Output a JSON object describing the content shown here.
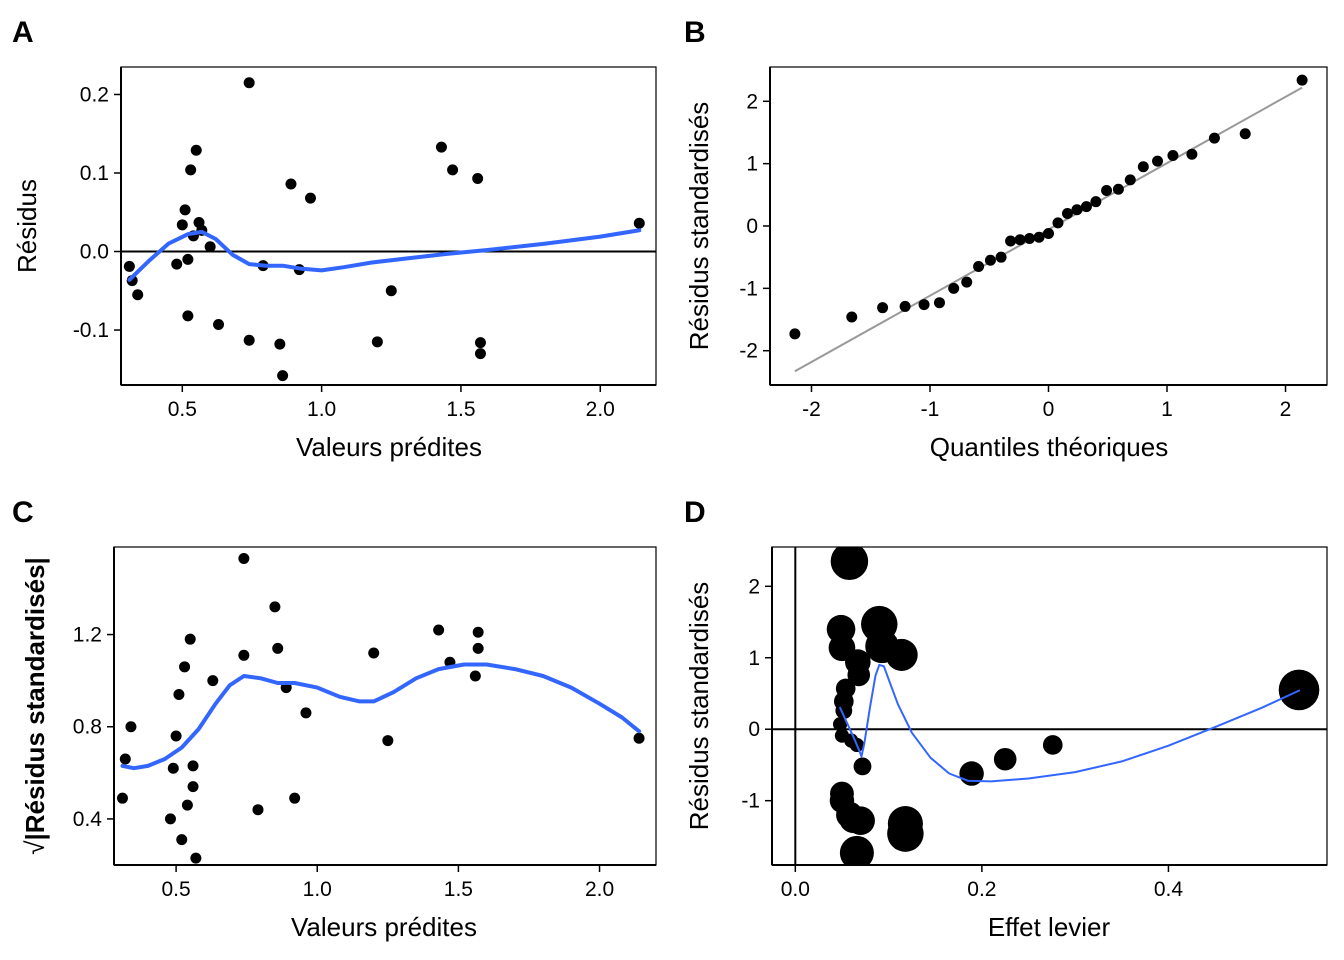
{
  "colors": {
    "smooth": "#3366FF",
    "qqline": "#999999",
    "point": "#000000",
    "refline": "#000000"
  },
  "chart_data": [
    {
      "panel": "A",
      "type": "scatter",
      "xlabel": "Valeurs prédites",
      "ylabel": "Résidus",
      "xlim": [
        0.28,
        2.2
      ],
      "ylim": [
        -0.17,
        0.235
      ],
      "xticks": [
        0.5,
        1.0,
        1.5,
        2.0
      ],
      "xtick_labels": [
        "0.5",
        "1.0",
        "1.5",
        "2.0"
      ],
      "yticks": [
        -0.1,
        0.0,
        0.1,
        0.2
      ],
      "ytick_labels": [
        "-0.1",
        "0.0",
        "0.1",
        "0.2"
      ],
      "hline": 0,
      "points": [
        [
          0.31,
          -0.019
        ],
        [
          0.32,
          -0.037
        ],
        [
          0.34,
          -0.055
        ],
        [
          0.48,
          -0.016
        ],
        [
          0.5,
          0.034
        ],
        [
          0.51,
          0.053
        ],
        [
          0.52,
          -0.01
        ],
        [
          0.52,
          -0.082
        ],
        [
          0.53,
          0.104
        ],
        [
          0.54,
          0.02
        ],
        [
          0.55,
          0.129
        ],
        [
          0.56,
          0.037
        ],
        [
          0.57,
          0.027
        ],
        [
          0.6,
          0.006
        ],
        [
          0.63,
          -0.093
        ],
        [
          0.74,
          0.215
        ],
        [
          0.74,
          -0.113
        ],
        [
          0.79,
          -0.018
        ],
        [
          0.85,
          -0.118
        ],
        [
          0.86,
          -0.158
        ],
        [
          0.89,
          0.086
        ],
        [
          0.92,
          -0.023
        ],
        [
          0.96,
          0.068
        ],
        [
          1.2,
          -0.115
        ],
        [
          1.25,
          -0.05
        ],
        [
          1.43,
          0.133
        ],
        [
          1.47,
          0.104
        ],
        [
          1.56,
          0.093
        ],
        [
          1.57,
          -0.116
        ],
        [
          1.57,
          -0.13
        ],
        [
          2.14,
          0.036
        ]
      ],
      "smooth": [
        [
          0.31,
          -0.036
        ],
        [
          0.38,
          -0.012
        ],
        [
          0.45,
          0.01
        ],
        [
          0.52,
          0.022
        ],
        [
          0.57,
          0.025
        ],
        [
          0.62,
          0.016
        ],
        [
          0.68,
          -0.004
        ],
        [
          0.74,
          -0.016
        ],
        [
          0.8,
          -0.018
        ],
        [
          0.86,
          -0.018
        ],
        [
          0.93,
          -0.022
        ],
        [
          1.0,
          -0.024
        ],
        [
          1.08,
          -0.02
        ],
        [
          1.18,
          -0.014
        ],
        [
          1.3,
          -0.009
        ],
        [
          1.45,
          -0.003
        ],
        [
          1.6,
          0.002
        ],
        [
          1.8,
          0.01
        ],
        [
          2.0,
          0.019
        ],
        [
          2.14,
          0.027
        ]
      ]
    },
    {
      "panel": "B",
      "type": "scatter",
      "xlabel": "Quantiles théoriques",
      "ylabel": "Résidus standardisés",
      "xlim": [
        -2.35,
        2.35
      ],
      "ylim": [
        -2.55,
        2.55
      ],
      "xticks": [
        -2,
        -1,
        0,
        1,
        2
      ],
      "xtick_labels": [
        "-2",
        "-1",
        "0",
        "1",
        "2"
      ],
      "yticks": [
        -2,
        -1,
        0,
        1,
        2
      ],
      "ytick_labels": [
        "-2",
        "-1",
        "0",
        "1",
        "2"
      ],
      "qqline": [
        [
          -2.14,
          -2.33
        ],
        [
          2.14,
          2.22
        ]
      ],
      "points": [
        [
          -2.14,
          -1.73
        ],
        [
          -1.66,
          -1.46
        ],
        [
          -1.4,
          -1.31
        ],
        [
          -1.21,
          -1.29
        ],
        [
          -1.05,
          -1.26
        ],
        [
          -0.92,
          -1.23
        ],
        [
          -0.8,
          -1.0
        ],
        [
          -0.69,
          -0.9
        ],
        [
          -0.59,
          -0.65
        ],
        [
          -0.49,
          -0.55
        ],
        [
          -0.4,
          -0.5
        ],
        [
          -0.32,
          -0.24
        ],
        [
          -0.24,
          -0.22
        ],
        [
          -0.16,
          -0.2
        ],
        [
          -0.08,
          -0.18
        ],
        [
          0.0,
          -0.12
        ],
        [
          0.08,
          0.05
        ],
        [
          0.16,
          0.2
        ],
        [
          0.24,
          0.26
        ],
        [
          0.32,
          0.31
        ],
        [
          0.4,
          0.39
        ],
        [
          0.49,
          0.57
        ],
        [
          0.59,
          0.59
        ],
        [
          0.69,
          0.74
        ],
        [
          0.8,
          0.95
        ],
        [
          0.92,
          1.04
        ],
        [
          1.05,
          1.13
        ],
        [
          1.21,
          1.15
        ],
        [
          1.4,
          1.41
        ],
        [
          1.66,
          1.48
        ],
        [
          2.14,
          2.34
        ]
      ]
    },
    {
      "panel": "C",
      "type": "scatter",
      "xlabel": "Valeurs prédites",
      "ylabel": "|Résidus standardisés|",
      "ylabel_prefix": "√",
      "xlim": [
        0.28,
        2.2
      ],
      "ylim": [
        0.2,
        1.58
      ],
      "xticks": [
        0.5,
        1.0,
        1.5,
        2.0
      ],
      "xtick_labels": [
        "0.5",
        "1.0",
        "1.5",
        "2.0"
      ],
      "yticks": [
        0.4,
        0.8,
        1.2
      ],
      "ytick_labels": [
        "0.4",
        "0.8",
        "1.2"
      ],
      "points": [
        [
          0.31,
          0.49
        ],
        [
          0.32,
          0.66
        ],
        [
          0.34,
          0.8
        ],
        [
          0.48,
          0.4
        ],
        [
          0.49,
          0.62
        ],
        [
          0.5,
          0.76
        ],
        [
          0.51,
          0.94
        ],
        [
          0.52,
          0.31
        ],
        [
          0.53,
          1.06
        ],
        [
          0.54,
          0.46
        ],
        [
          0.55,
          1.18
        ],
        [
          0.56,
          0.63
        ],
        [
          0.56,
          0.54
        ],
        [
          0.57,
          0.23
        ],
        [
          0.63,
          1.0
        ],
        [
          0.74,
          1.53
        ],
        [
          0.74,
          1.11
        ],
        [
          0.79,
          0.44
        ],
        [
          0.85,
          1.32
        ],
        [
          0.86,
          1.14
        ],
        [
          0.89,
          0.97
        ],
        [
          0.92,
          0.49
        ],
        [
          0.96,
          0.86
        ],
        [
          1.2,
          1.12
        ],
        [
          1.25,
          0.74
        ],
        [
          1.43,
          1.22
        ],
        [
          1.47,
          1.08
        ],
        [
          1.56,
          1.02
        ],
        [
          1.57,
          1.14
        ],
        [
          1.57,
          1.21
        ],
        [
          2.14,
          0.75
        ]
      ],
      "smooth": [
        [
          0.31,
          0.63
        ],
        [
          0.35,
          0.62
        ],
        [
          0.4,
          0.63
        ],
        [
          0.46,
          0.66
        ],
        [
          0.52,
          0.71
        ],
        [
          0.58,
          0.79
        ],
        [
          0.64,
          0.9
        ],
        [
          0.69,
          0.98
        ],
        [
          0.74,
          1.02
        ],
        [
          0.8,
          1.01
        ],
        [
          0.86,
          0.99
        ],
        [
          0.92,
          0.99
        ],
        [
          1.0,
          0.97
        ],
        [
          1.08,
          0.93
        ],
        [
          1.15,
          0.91
        ],
        [
          1.2,
          0.91
        ],
        [
          1.27,
          0.95
        ],
        [
          1.35,
          1.01
        ],
        [
          1.43,
          1.05
        ],
        [
          1.52,
          1.07
        ],
        [
          1.6,
          1.07
        ],
        [
          1.7,
          1.05
        ],
        [
          1.8,
          1.02
        ],
        [
          1.9,
          0.97
        ],
        [
          2.0,
          0.9
        ],
        [
          2.08,
          0.84
        ],
        [
          2.14,
          0.78
        ]
      ]
    },
    {
      "panel": "D",
      "type": "scatter",
      "xlabel": "Effet levier",
      "ylabel": "Résidus standardisés",
      "xlim": [
        -0.025,
        0.57
      ],
      "ylim": [
        -1.9,
        2.55
      ],
      "xticks": [
        0.0,
        0.2,
        0.4
      ],
      "xtick_labels": [
        "0.0",
        "0.2",
        "0.4"
      ],
      "yticks": [
        -1,
        0,
        1,
        2
      ],
      "ytick_labels": [
        "-1",
        "0",
        "1",
        "2"
      ],
      "hline": 0,
      "vline": 0,
      "points": [
        {
          "x": 0.058,
          "y": 2.35,
          "cook": 0.45
        },
        {
          "x": 0.09,
          "y": 1.47,
          "cook": 0.42
        },
        {
          "x": 0.049,
          "y": 1.4,
          "cook": 0.22
        },
        {
          "x": 0.093,
          "y": 1.16,
          "cook": 0.34
        },
        {
          "x": 0.05,
          "y": 1.14,
          "cook": 0.18
        },
        {
          "x": 0.114,
          "y": 1.04,
          "cook": 0.3
        },
        {
          "x": 0.067,
          "y": 0.94,
          "cook": 0.16
        },
        {
          "x": 0.068,
          "y": 0.76,
          "cook": 0.11
        },
        {
          "x": 0.054,
          "y": 0.57,
          "cook": 0.07
        },
        {
          "x": 0.052,
          "y": 0.39,
          "cook": 0.07
        },
        {
          "x": 0.052,
          "y": 0.26,
          "cook": 0.04
        },
        {
          "x": 0.048,
          "y": 0.07,
          "cook": 0.02
        },
        {
          "x": 0.05,
          "y": -0.09,
          "cook": 0.02
        },
        {
          "x": 0.06,
          "y": -0.16,
          "cook": 0.02
        },
        {
          "x": 0.066,
          "y": -0.22,
          "cook": 0.02
        },
        {
          "x": 0.072,
          "y": -0.52,
          "cook": 0.05
        },
        {
          "x": 0.189,
          "y": -0.62,
          "cook": 0.14
        },
        {
          "x": 0.225,
          "y": -0.42,
          "cook": 0.11
        },
        {
          "x": 0.276,
          "y": -0.22,
          "cook": 0.07
        },
        {
          "x": 0.05,
          "y": -0.9,
          "cook": 0.13
        },
        {
          "x": 0.05,
          "y": -1.0,
          "cook": 0.14
        },
        {
          "x": 0.058,
          "y": -1.2,
          "cook": 0.18
        },
        {
          "x": 0.062,
          "y": -1.26,
          "cook": 0.2
        },
        {
          "x": 0.07,
          "y": -1.28,
          "cook": 0.22
        },
        {
          "x": 0.118,
          "y": -1.32,
          "cook": 0.38
        },
        {
          "x": 0.118,
          "y": -1.46,
          "cook": 0.42
        },
        {
          "x": 0.066,
          "y": -1.73,
          "cook": 0.35
        },
        {
          "x": 0.54,
          "y": 0.55,
          "cook": 0.55
        }
      ],
      "smooth": [
        [
          0.048,
          0.3
        ],
        [
          0.055,
          0.1
        ],
        [
          0.062,
          -0.1
        ],
        [
          0.068,
          -0.28
        ],
        [
          0.071,
          -0.38
        ],
        [
          0.074,
          -0.2
        ],
        [
          0.08,
          0.3
        ],
        [
          0.086,
          0.75
        ],
        [
          0.09,
          0.9
        ],
        [
          0.095,
          0.88
        ],
        [
          0.1,
          0.7
        ],
        [
          0.11,
          0.35
        ],
        [
          0.125,
          -0.05
        ],
        [
          0.145,
          -0.4
        ],
        [
          0.165,
          -0.62
        ],
        [
          0.185,
          -0.72
        ],
        [
          0.21,
          -0.73
        ],
        [
          0.25,
          -0.69
        ],
        [
          0.3,
          -0.6
        ],
        [
          0.35,
          -0.45
        ],
        [
          0.4,
          -0.23
        ],
        [
          0.45,
          0.03
        ],
        [
          0.5,
          0.3
        ],
        [
          0.54,
          0.54
        ]
      ]
    }
  ]
}
